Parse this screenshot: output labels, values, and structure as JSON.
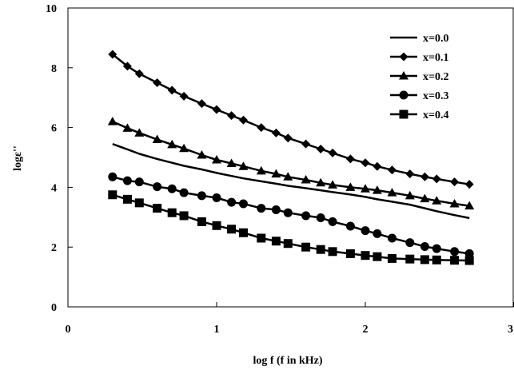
{
  "chart_data": {
    "type": "line",
    "xlabel": "log f (f in kHz)",
    "ylabel": "logε''",
    "xlim": [
      0,
      3
    ],
    "ylim": [
      0,
      10
    ],
    "xticks": [
      "0",
      "1",
      "2",
      "3"
    ],
    "yticks": [
      "0",
      "2",
      "4",
      "6",
      "8",
      "10"
    ],
    "grid": false,
    "legend_position": "top-right",
    "x": [
      0.3,
      0.4,
      0.48,
      0.6,
      0.7,
      0.78,
      0.9,
      1.0,
      1.1,
      1.18,
      1.3,
      1.4,
      1.48,
      1.6,
      1.7,
      1.78,
      1.9,
      2.0,
      2.08,
      2.18,
      2.3,
      2.4,
      2.48,
      2.6,
      2.7
    ],
    "series": [
      {
        "name": "x=0.0",
        "marker": "none",
        "values": [
          5.45,
          5.27,
          5.12,
          4.95,
          4.82,
          4.72,
          4.6,
          4.48,
          4.38,
          4.3,
          4.2,
          4.12,
          4.05,
          3.97,
          3.9,
          3.84,
          3.76,
          3.68,
          3.6,
          3.52,
          3.42,
          3.3,
          3.2,
          3.07,
          2.97
        ]
      },
      {
        "name": "x=0.1",
        "marker": "diamond",
        "values": [
          8.45,
          8.05,
          7.8,
          7.5,
          7.25,
          7.05,
          6.8,
          6.6,
          6.4,
          6.25,
          6.0,
          5.82,
          5.65,
          5.45,
          5.28,
          5.15,
          4.95,
          4.82,
          4.7,
          4.58,
          4.45,
          4.35,
          4.28,
          4.18,
          4.1
        ]
      },
      {
        "name": "x=0.2",
        "marker": "triangle",
        "values": [
          6.2,
          5.98,
          5.82,
          5.6,
          5.43,
          5.3,
          5.08,
          4.92,
          4.8,
          4.7,
          4.55,
          4.45,
          4.35,
          4.25,
          4.15,
          4.08,
          4.0,
          3.95,
          3.9,
          3.82,
          3.72,
          3.62,
          3.55,
          3.45,
          3.38
        ]
      },
      {
        "name": "x=0.3",
        "marker": "circle",
        "values": [
          4.35,
          4.22,
          4.18,
          4.02,
          3.95,
          3.82,
          3.72,
          3.65,
          3.5,
          3.45,
          3.3,
          3.25,
          3.15,
          3.05,
          2.98,
          2.85,
          2.7,
          2.55,
          2.45,
          2.3,
          2.15,
          2.02,
          1.95,
          1.85,
          1.78
        ]
      },
      {
        "name": "x=0.4",
        "marker": "square",
        "values": [
          3.75,
          3.6,
          3.48,
          3.3,
          3.15,
          3.05,
          2.85,
          2.72,
          2.6,
          2.48,
          2.3,
          2.2,
          2.12,
          2.0,
          1.92,
          1.85,
          1.78,
          1.72,
          1.68,
          1.62,
          1.6,
          1.58,
          1.57,
          1.56,
          1.55
        ]
      }
    ]
  }
}
